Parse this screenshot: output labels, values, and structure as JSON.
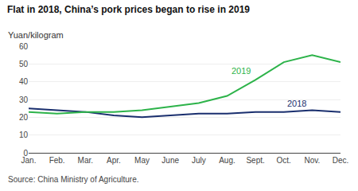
{
  "chart_data": {
    "type": "line",
    "title": "Flat in 2018, China’s pork prices began to rise in 2019",
    "ylabel": "Yuan/kilogram",
    "annotations": [
      "Source: China Ministry of Agriculture."
    ],
    "categories": [
      "Jan.",
      "Feb.",
      "Mar.",
      "Apr.",
      "May",
      "June",
      "July",
      "Aug.",
      "Sept.",
      "Oct.",
      "Nov.",
      "Dec."
    ],
    "series": [
      {
        "name": "2018",
        "color": "#1a2f6e",
        "values": [
          25,
          24,
          23,
          21,
          20,
          21,
          22,
          22,
          23,
          23,
          24,
          23
        ]
      },
      {
        "name": "2019",
        "color": "#2db34a",
        "values": [
          23,
          22,
          23,
          23,
          24,
          26,
          28,
          32,
          41,
          51,
          55,
          51
        ]
      }
    ],
    "ylim": [
      0,
      60
    ],
    "yticks": [
      0,
      10,
      20,
      30,
      40,
      50,
      60
    ],
    "grid": true
  }
}
